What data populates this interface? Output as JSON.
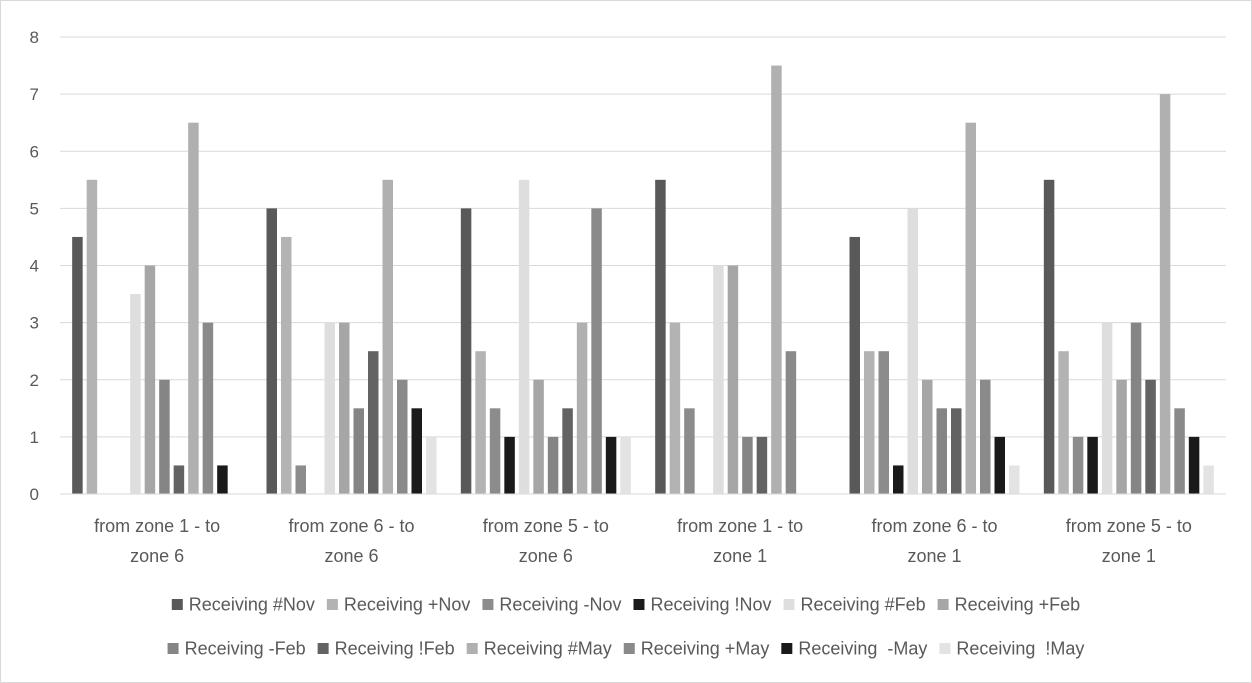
{
  "chart_data": {
    "type": "bar",
    "title": "",
    "xlabel": "",
    "ylabel": "",
    "ylim": [
      0,
      8
    ],
    "yticks": [
      "0",
      "1",
      "2",
      "3",
      "4",
      "5",
      "6",
      "7",
      "8"
    ],
    "grid": true,
    "legend_position": "bottom",
    "categories": [
      [
        "from zone 1 - to",
        "zone 6"
      ],
      [
        "from zone 6 - to",
        "zone 6"
      ],
      [
        "from zone 5 - to",
        "zone 6"
      ],
      [
        "from zone 1 - to",
        "zone 1"
      ],
      [
        "from zone 6 - to",
        "zone 1"
      ],
      [
        "from zone 5 - to",
        "zone 1"
      ]
    ],
    "series": [
      {
        "name": "Receiving #Nov",
        "color": "#595959",
        "values": [
          4.5,
          5,
          5,
          5.5,
          4.5,
          5.5
        ]
      },
      {
        "name": "Receiving +Nov",
        "color": "#b3b3b3",
        "values": [
          5.5,
          4.5,
          2.5,
          3,
          2.5,
          2.5
        ]
      },
      {
        "name": "Receiving -Nov",
        "color": "#8c8c8c",
        "values": [
          0,
          0.5,
          1.5,
          1.5,
          2.5,
          1
        ]
      },
      {
        "name": "Receiving !Nov",
        "color": "#1a1a1a",
        "values": [
          0,
          0,
          1,
          0,
          0.5,
          1
        ]
      },
      {
        "name": "Receiving #Feb",
        "color": "#dedede",
        "values": [
          3.5,
          3,
          5.5,
          4,
          5,
          3
        ]
      },
      {
        "name": "Receiving +Feb",
        "color": "#a6a6a6",
        "values": [
          4,
          3,
          2,
          4,
          2,
          2
        ]
      },
      {
        "name": "Receiving -Feb",
        "color": "#858585",
        "values": [
          2,
          1.5,
          1,
          1,
          1.5,
          3
        ]
      },
      {
        "name": "Receiving !Feb",
        "color": "#636363",
        "values": [
          0.5,
          2.5,
          1.5,
          1,
          1.5,
          2
        ]
      },
      {
        "name": "Receiving #May",
        "color": "#b0b0b0",
        "values": [
          6.5,
          5.5,
          3,
          7.5,
          6.5,
          7
        ]
      },
      {
        "name": "Receiving +May",
        "color": "#8a8a8a",
        "values": [
          3,
          2,
          5,
          2.5,
          2,
          1.5
        ]
      },
      {
        "name": "Receiving  -May",
        "color": "#1a1a1a",
        "values": [
          0.5,
          1.5,
          1,
          0,
          1,
          1
        ]
      },
      {
        "name": "Receiving  !May",
        "color": "#e3e3e3",
        "values": [
          0,
          1,
          1,
          0,
          0.5,
          0.5
        ]
      }
    ]
  }
}
